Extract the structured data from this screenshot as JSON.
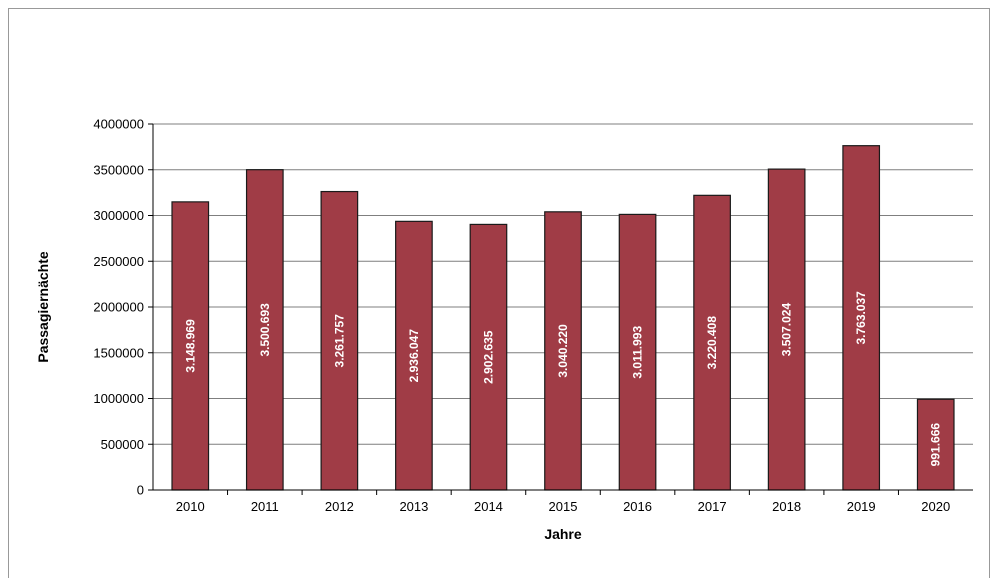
{
  "chart_data": {
    "type": "bar",
    "title": "",
    "xlabel": "Jahre",
    "ylabel": "Passagiernächte",
    "categories": [
      "2010",
      "2011",
      "2012",
      "2013",
      "2014",
      "2015",
      "2016",
      "2017",
      "2018",
      "2019",
      "2020"
    ],
    "values": [
      3148969,
      3500693,
      3261757,
      2936047,
      2902635,
      3040220,
      3011993,
      3220408,
      3507024,
      3763037,
      991666
    ],
    "value_labels": [
      "3.148.969",
      "3.500.693",
      "3.261.757",
      "2.936.047",
      "2.902.635",
      "3.040.220",
      "3.011.993",
      "3.220.408",
      "3.507.024",
      "3.763.037",
      "991.666"
    ],
    "ylim": [
      0,
      4000000
    ],
    "yticks": [
      0,
      500000,
      1000000,
      1500000,
      2000000,
      2500000,
      3000000,
      3500000,
      4000000
    ],
    "ytick_labels": [
      "0",
      "500000",
      "1000000",
      "1500000",
      "2000000",
      "2500000",
      "3000000",
      "3500000",
      "4000000"
    ],
    "grid": true,
    "legend": "none",
    "colors": {
      "bar": "#a03c46",
      "bar_edge": "#1a1a1a",
      "grid": "#7f7f7f",
      "axis": "#000000"
    }
  }
}
